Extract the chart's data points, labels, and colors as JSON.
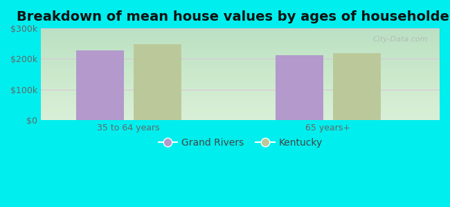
{
  "title": "Breakdown of mean house values by ages of householders",
  "categories": [
    "35 to 64 years",
    "65 years+"
  ],
  "series": {
    "Grand Rivers": [
      228000,
      213000
    ],
    "Kentucky": [
      248000,
      220000
    ]
  },
  "bar_colors": {
    "Grand Rivers": "#b399cc",
    "Kentucky": "#bbc99a"
  },
  "ylim": [
    0,
    300000
  ],
  "yticks": [
    0,
    100000,
    200000,
    300000
  ],
  "ytick_labels": [
    "$0",
    "$100k",
    "$200k",
    "$300k"
  ],
  "background_color": "#00eeee",
  "title_fontsize": 14,
  "tick_fontsize": 9,
  "legend_fontsize": 10,
  "bar_width": 0.12,
  "group_positions": [
    0.22,
    0.72
  ],
  "xlim": [
    0.0,
    1.0
  ]
}
